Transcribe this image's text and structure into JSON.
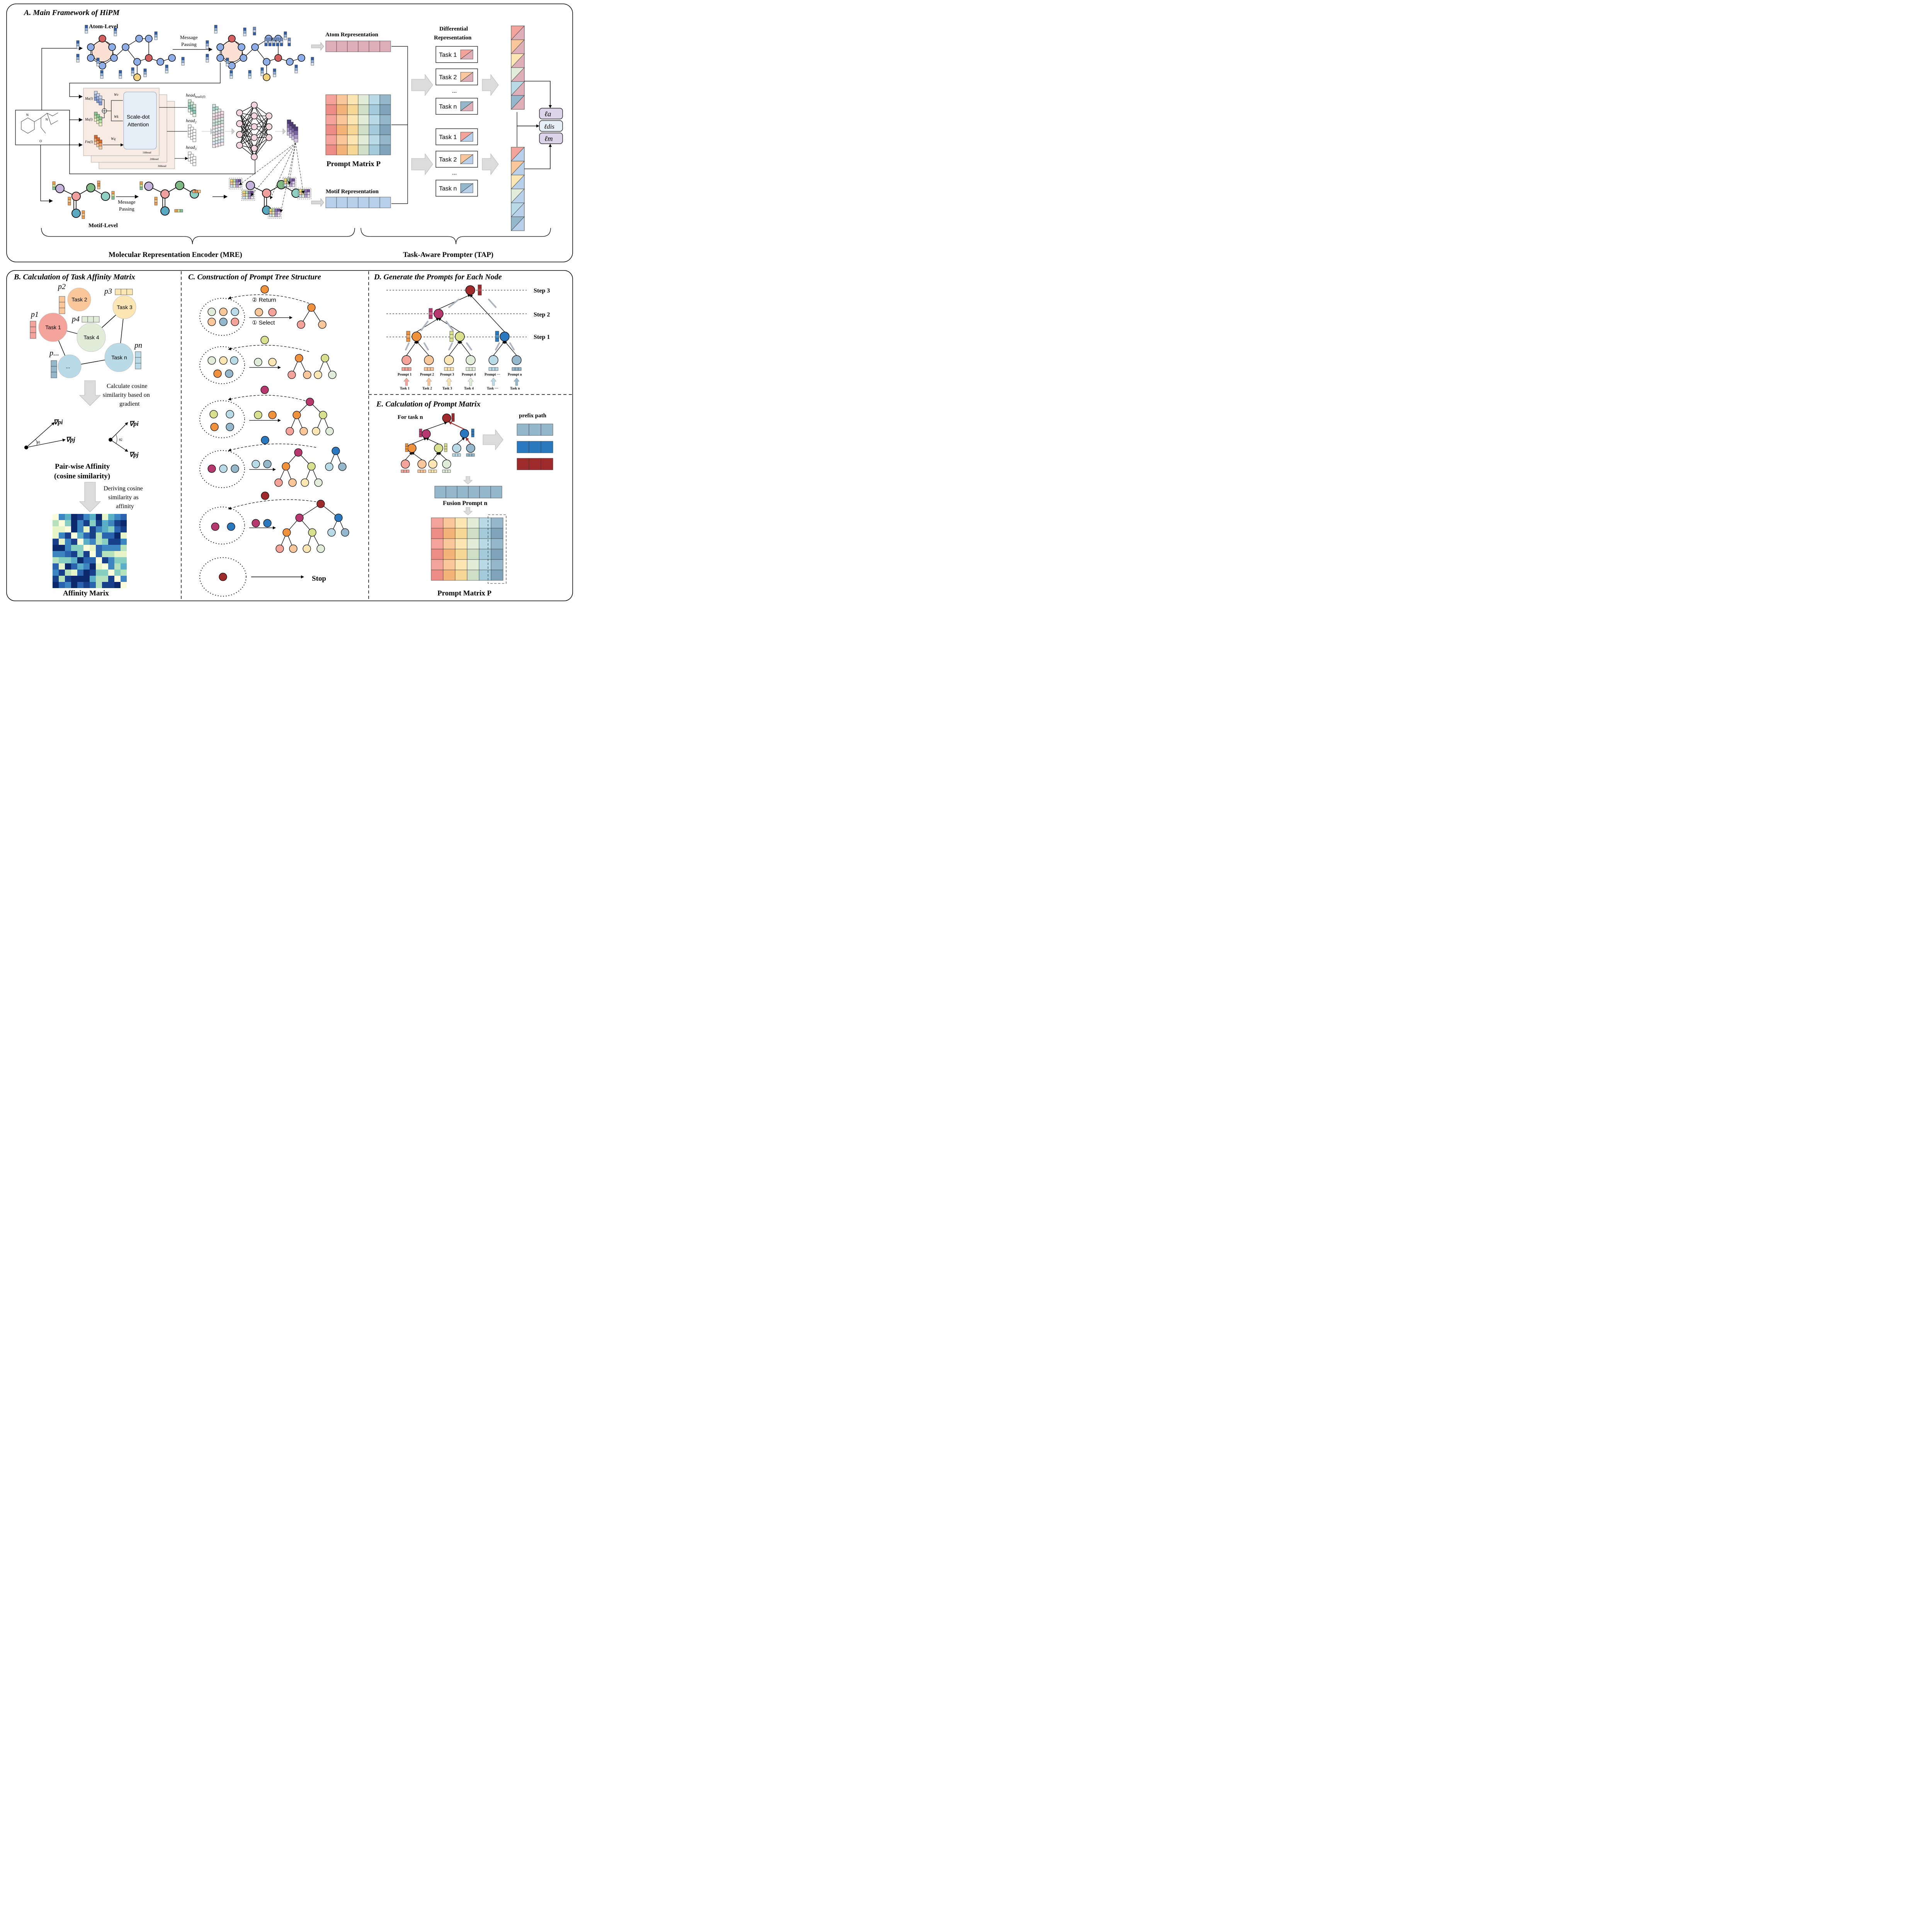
{
  "panel_a": {
    "title": "A. Main Framework of HiPM",
    "atom_level": "Atom-Level",
    "motif_level": "Motif-Level",
    "message_passing_1": "Message",
    "message_passing_2": "Passing",
    "atom_representation": "Atom Representation",
    "motif_representation": "Motif Representation",
    "differential_1": "Differential",
    "differential_2": "Representation",
    "prompt_matrix": "Prompt Matrix P",
    "attention": [
      "Scale-dot",
      "Attention"
    ],
    "mre": "Molecular Representation Encoder (MRE)",
    "tap": "Task-Aware Prompter (TAP)",
    "tasks_upper": [
      "Task 1",
      "Task 2",
      "...",
      "Task n"
    ],
    "tasks_lower": [
      "Task 1",
      "Task 2",
      "...",
      "Task n"
    ],
    "losses": [
      "ℓa",
      "ℓdis",
      "ℓm"
    ],
    "heads": [
      "head1(l)",
      "head2(l)",
      "head3(l)"
    ],
    "head_pages": [
      "1thhead",
      "2thhead",
      "3thhead"
    ],
    "weights": [
      "Wv",
      "Wk",
      "Wq"
    ],
    "inputs": [
      "Ma(l)",
      "Ms(l)",
      "Fm(l)"
    ]
  },
  "panel_b": {
    "title": "B. Calculation of Task Affinity Matrix",
    "tasks": [
      "Task 1",
      "Task 2",
      "Task 3",
      "Task 4",
      "...",
      "Task n"
    ],
    "prompts": [
      "p1",
      "p2",
      "p3",
      "p4",
      "p...",
      "pn"
    ],
    "step1": [
      "Calculate cosine",
      "similarity based on",
      "gradient"
    ],
    "grad_i": "∇pi",
    "grad_j": "∇pj",
    "theta1": "θ1",
    "theta2": "θ2",
    "pairwise": [
      "Pair-wise Affinity",
      "(cosine similarity)"
    ],
    "step2": [
      "Deriving cosine",
      "similarity as",
      "affinity"
    ],
    "affinity": "Affinity Marix"
  },
  "panel_c": {
    "title": "C. Construction of Prompt Tree Structure",
    "return_label": "② Return",
    "select_label": "① Select",
    "stop": "Stop"
  },
  "panel_d": {
    "title": "D. Generate the Prompts for Each Node",
    "steps": [
      "Step 3",
      "Step 2",
      "Step 1"
    ],
    "prompts": [
      "Prompt 1",
      "Prompt 2",
      "Prompt 3",
      "Prompt 4",
      "Prompt ···",
      "Prompt n"
    ],
    "tasks": [
      "Task 1",
      "Task 2",
      "Task 3",
      "Task 4",
      "Task ···",
      "Task n"
    ]
  },
  "panel_e": {
    "title": "E. Calculation of Prompt Matrix",
    "for_task": "For task n",
    "prefix_path": "prefix path",
    "fusion": "Fusion Prompt n",
    "prompt_matrix": "Prompt Matrix P"
  },
  "colors": {
    "task1": "#f4a39a",
    "task2": "#f9c79a",
    "task3": "#fbe6b4",
    "task4": "#e1ecd9",
    "task_dots": "#b9dbe8",
    "taskn": "#94b7cb",
    "orange": "#f0913c",
    "yellowgreen": "#d9e08d",
    "magenta": "#b7386f",
    "blue": "#2a78bd",
    "darkred": "#9e2a2b",
    "atom_blue": "#8eaee8",
    "atom_red": "#d45f5f",
    "atom_yellow": "#f3d17a",
    "motif_purple": "#c5b3dc",
    "motif_green": "#7fba84",
    "motif_teal": "#8fd0c4",
    "motif_pink": "#f1a0a0",
    "motif_cyan": "#59aac0",
    "attention_box": "#e6eff7"
  }
}
